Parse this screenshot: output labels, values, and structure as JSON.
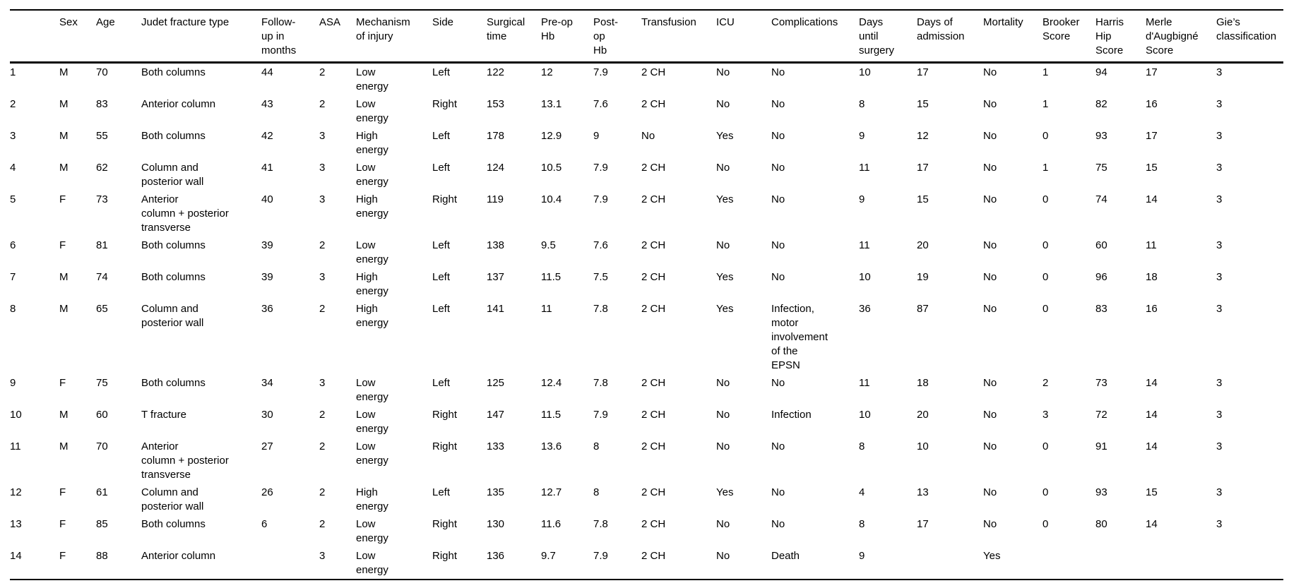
{
  "colors": {
    "text": "#000000",
    "background": "#ffffff",
    "rule": "#000000"
  },
  "table": {
    "headers": [
      "",
      "Sex",
      "Age",
      "Judet fracture type",
      "Follow-\nup in\nmonths",
      "ASA",
      "Mechanism\nof injury",
      "Side",
      "Surgical\ntime",
      "Pre-op\nHb",
      "Post-\nop\nHb",
      "Transfusion",
      "ICU",
      "Complications",
      "Days\nuntil\nsurgery",
      "Days of\nadmission",
      "Mortality",
      "Brooker\nScore",
      "Harris\nHip\nScore",
      "Merle\nd'Augbigné\nScore",
      "Gie’s\nclassification"
    ],
    "rows": [
      [
        "1",
        "M",
        "70",
        "Both columns",
        "44",
        "2",
        "Low\nenergy",
        "Left",
        "122",
        "12",
        "7.9",
        "2 CH",
        "No",
        "No",
        "10",
        "17",
        "No",
        "1",
        "94",
        "17",
        "3"
      ],
      [
        "2",
        "M",
        "83",
        "Anterior column",
        "43",
        "2",
        "Low\nenergy",
        "Right",
        "153",
        "13.1",
        "7.6",
        "2 CH",
        "No",
        "No",
        "8",
        "15",
        "No",
        "1",
        "82",
        "16",
        "3"
      ],
      [
        "3",
        "M",
        "55",
        "Both columns",
        "42",
        "3",
        "High\nenergy",
        "Left",
        "178",
        "12.9",
        "9",
        "No",
        "Yes",
        "No",
        "9",
        "12",
        "No",
        "0",
        "93",
        "17",
        "3"
      ],
      [
        "4",
        "M",
        "62",
        "Column and\nposterior wall",
        "41",
        "3",
        "Low\nenergy",
        "Left",
        "124",
        "10.5",
        "7.9",
        "2 CH",
        "No",
        "No",
        "11",
        "17",
        "No",
        "1",
        "75",
        "15",
        "3"
      ],
      [
        "5",
        "F",
        "73",
        "Anterior\ncolumn + posterior\ntransverse",
        "40",
        "3",
        "High\nenergy",
        "Right",
        "119",
        "10.4",
        "7.9",
        "2 CH",
        "Yes",
        "No",
        "9",
        "15",
        "No",
        "0",
        "74",
        "14",
        "3"
      ],
      [
        "6",
        "F",
        "81",
        "Both columns",
        "39",
        "2",
        "Low\nenergy",
        "Left",
        "138",
        "9.5",
        "7.6",
        "2 CH",
        "No",
        "No",
        "11",
        "20",
        "No",
        "0",
        "60",
        "11",
        "3"
      ],
      [
        "7",
        "M",
        "74",
        "Both columns",
        "39",
        "3",
        "High\nenergy",
        "Left",
        "137",
        "11.5",
        "7.5",
        "2 CH",
        "Yes",
        "No",
        "10",
        "19",
        "No",
        "0",
        "96",
        "18",
        "3"
      ],
      [
        "8",
        "M",
        "65",
        "Column and\nposterior wall",
        "36",
        "2",
        "High\nenergy",
        "Left",
        "141",
        "11",
        "7.8",
        "2 CH",
        "Yes",
        "Infection,\nmotor\ninvolvement\nof the\nEPSN",
        "36",
        "87",
        "No",
        "0",
        "83",
        "16",
        "3"
      ],
      [
        "9",
        "F",
        "75",
        "Both columns",
        "34",
        "3",
        "Low\nenergy",
        "Left",
        "125",
        "12.4",
        "7.8",
        "2 CH",
        "No",
        "No",
        "11",
        "18",
        "No",
        "2",
        "73",
        "14",
        "3"
      ],
      [
        "10",
        "M",
        "60",
        "T fracture",
        "30",
        "2",
        "Low\nenergy",
        "Right",
        "147",
        "11.5",
        "7.9",
        "2 CH",
        "No",
        "Infection",
        "10",
        "20",
        "No",
        "3",
        "72",
        "14",
        "3"
      ],
      [
        "11",
        "M",
        "70",
        "Anterior\ncolumn + posterior\ntransverse",
        "27",
        "2",
        "Low\nenergy",
        "Right",
        "133",
        "13.6",
        "8",
        "2 CH",
        "No",
        "No",
        "8",
        "10",
        "No",
        "0",
        "91",
        "14",
        "3"
      ],
      [
        "12",
        "F",
        "61",
        "Column and\nposterior wall",
        "26",
        "2",
        "High\nenergy",
        "Left",
        "135",
        "12.7",
        "8",
        "2 CH",
        "Yes",
        "No",
        "4",
        "13",
        "No",
        "0",
        "93",
        "15",
        "3"
      ],
      [
        "13",
        "F",
        "85",
        "Both columns",
        "6",
        "2",
        "Low\nenergy",
        "Right",
        "130",
        "11.6",
        "7.8",
        "2 CH",
        "No",
        "No",
        "8",
        "17",
        "No",
        "0",
        "80",
        "14",
        "3"
      ],
      [
        "14",
        "F",
        "88",
        "Anterior column",
        "",
        "3",
        "Low\nenergy",
        "Right",
        "136",
        "9.7",
        "7.9",
        "2 CH",
        "No",
        "Death",
        "9",
        "",
        "Yes",
        "",
        "",
        "",
        ""
      ]
    ]
  }
}
